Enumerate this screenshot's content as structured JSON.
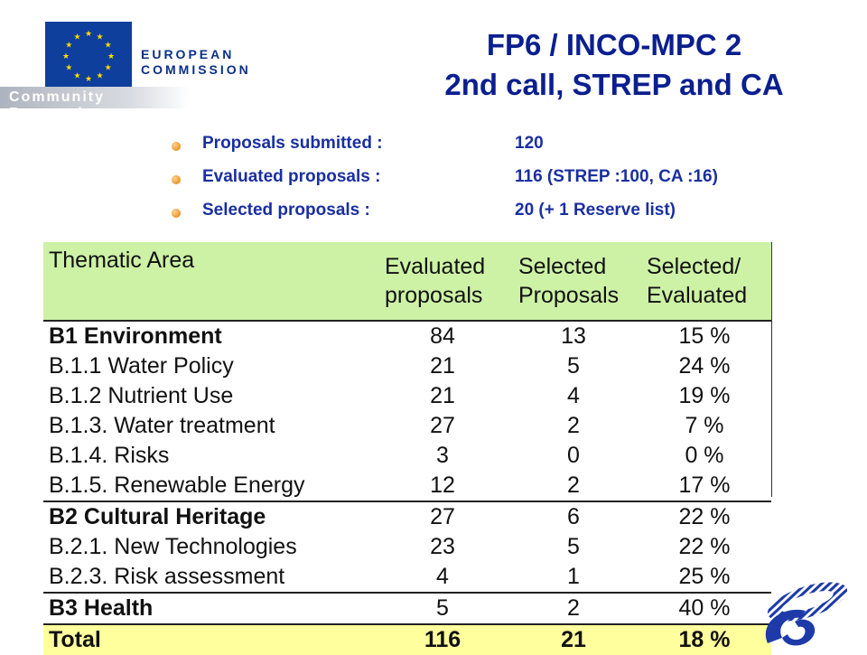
{
  "logo": {
    "org_line1": "EUROPEAN",
    "org_line2": "COMMISSION",
    "band_text": "Community Research"
  },
  "title": {
    "line1": "FP6 / INCO-MPC 2",
    "line2": "2nd call, STREP and CA"
  },
  "bullets": [
    {
      "label": "Proposals submitted :",
      "value": "120"
    },
    {
      "label": "Evaluated proposals :",
      "value": "116 (STREP :100, CA :16)"
    },
    {
      "label": "Selected proposals :",
      "value": "20 (+ 1 Reserve list)"
    }
  ],
  "table": {
    "headers": {
      "area": "Thematic Area",
      "evaluated_1": "Evaluated",
      "evaluated_2": "proposals",
      "selected_1": "Selected",
      "selected_2": "Proposals",
      "ratio_1": "Selected/",
      "ratio_2": "Evaluated"
    },
    "rows": [
      {
        "area": "B1 Environment",
        "evaluated": "84",
        "selected": "13",
        "ratio": "15 %"
      },
      {
        "area": "B.1.1 Water Policy",
        "evaluated": "21",
        "selected": "5",
        "ratio": "24 %"
      },
      {
        "area": "B.1.2 Nutrient Use",
        "evaluated": "21",
        "selected": "4",
        "ratio": "19 %"
      },
      {
        "area": "B.1.3. Water treatment",
        "evaluated": "27",
        "selected": "2",
        "ratio": "7 %"
      },
      {
        "area": "B.1.4. Risks",
        "evaluated": "3",
        "selected": "0",
        "ratio": "0 %"
      },
      {
        "area": "B.1.5. Renewable Energy",
        "evaluated": "12",
        "selected": "2",
        "ratio": "17 %"
      },
      {
        "area": "B2 Cultural Heritage",
        "evaluated": "27",
        "selected": "6",
        "ratio": "22 %"
      },
      {
        "area": "B.2.1. New Technologies",
        "evaluated": "23",
        "selected": "5",
        "ratio": "22 %"
      },
      {
        "area": "B.2.3. Risk assessment",
        "evaluated": "4",
        "selected": "1",
        "ratio": "25 %"
      },
      {
        "area": "B3 Health",
        "evaluated": "5",
        "selected": "2",
        "ratio": "40 %"
      }
    ],
    "total": {
      "area": "Total",
      "evaluated": "116",
      "selected": "21",
      "ratio": "18 %"
    }
  },
  "colors": {
    "title": "#0b1f8f",
    "bullet_text": "#1a2fa0",
    "header_bg": "#cdf2a6",
    "total_bg": "#ffff9e",
    "eu_blue": "#0f3f9c",
    "eu_star": "#ffdd00"
  },
  "icons": [
    "eu-flag-icon",
    "fp6-logo-icon",
    "bullet-icon"
  ]
}
